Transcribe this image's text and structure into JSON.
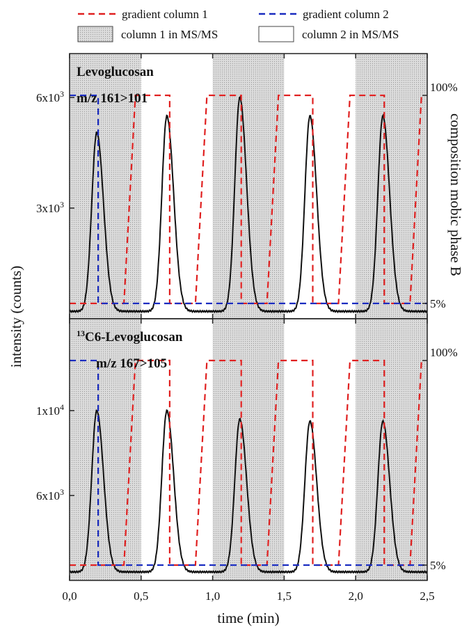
{
  "chart_data": {
    "type": "line",
    "xlabel": "time (min)",
    "ylabel": "intensity (counts)",
    "y2label": "composition mobile phase B",
    "y2label_display": "composition mobic phase B",
    "xlim": [
      0.0,
      2.5
    ],
    "x_ticks": [
      "0,0",
      "0,5",
      "1,0",
      "1,5",
      "2,0",
      "2,5"
    ],
    "x_tick_values": [
      0.0,
      0.5,
      1.0,
      1.5,
      2.0,
      2.5
    ],
    "grid": false,
    "legend": {
      "placement": "top",
      "entries": [
        {
          "label": "gradient column 1",
          "style": "dashed",
          "color": "#e02020"
        },
        {
          "label": "gradient column 2",
          "style": "dashed",
          "color": "#1a2cc0"
        },
        {
          "label": "column 1 in MS/MS",
          "style": "shaded",
          "color": "#c8c8c8"
        },
        {
          "label": "column 2 in MS/MS",
          "style": "open",
          "color": "#ffffff"
        }
      ]
    },
    "shaded_intervals": [
      [
        0.0,
        0.5
      ],
      [
        1.0,
        1.5
      ],
      [
        2.0,
        2.5
      ]
    ],
    "colors": {
      "trace": "#111111",
      "gradient1": "#e02020",
      "gradient2": "#1a2cc0",
      "shade": "#d4d4d4"
    },
    "panels": [
      {
        "id": "top",
        "annotation_line1": "Levoglucosan",
        "annotation_line2": "m/z 161>101",
        "ylim": [
          0,
          7000
        ],
        "y_ticks": [
          {
            "value": 3000,
            "mantissa": "3x10",
            "exp": "3"
          },
          {
            "value": 6000,
            "mantissa": "6x10",
            "exp": "3"
          }
        ],
        "y2_ticks": [
          "5%",
          "100%"
        ],
        "baseline": 200,
        "peaks": [
          {
            "center": 0.19,
            "height": 5050,
            "width": 0.035
          },
          {
            "center": 0.68,
            "height": 5500,
            "width": 0.035
          },
          {
            "center": 1.19,
            "height": 6000,
            "width": 0.035
          },
          {
            "center": 1.68,
            "height": 5500,
            "width": 0.035
          },
          {
            "center": 2.19,
            "height": 5500,
            "width": 0.035
          }
        ]
      },
      {
        "id": "bottom",
        "annotation_prefix": "13",
        "annotation_line1": "C6-Levoglucosan",
        "annotation_sub": "6",
        "annotation_line2": "m/z 167>105",
        "ylim": [
          2000,
          14000
        ],
        "y_ticks": [
          {
            "value": 6000,
            "mantissa": "6x10",
            "exp": "3"
          },
          {
            "value": 10000,
            "mantissa": "1x10",
            "exp": "4"
          }
        ],
        "y2_ticks": [
          "5%",
          "100%"
        ],
        "baseline": 2400,
        "peaks": [
          {
            "center": 0.19,
            "height": 10000,
            "width": 0.035
          },
          {
            "center": 0.68,
            "height": 10000,
            "width": 0.035
          },
          {
            "center": 1.19,
            "height": 9600,
            "width": 0.035
          },
          {
            "center": 1.68,
            "height": 9500,
            "width": 0.035
          },
          {
            "center": 2.19,
            "height": 9500,
            "width": 0.035
          }
        ]
      }
    ],
    "gradient_column1": {
      "unit": "% B",
      "x": [
        0.0,
        0.38,
        0.46,
        0.46,
        0.5,
        0.5,
        0.52,
        0.7,
        0.7,
        0.88,
        0.96,
        0.96,
        1.0,
        1.0,
        1.02,
        1.2,
        1.2,
        1.38,
        1.46,
        1.46,
        1.5,
        1.5,
        1.52,
        1.7,
        1.7,
        1.88,
        1.96,
        1.96,
        2.0,
        2.0,
        2.02,
        2.2,
        2.2,
        2.38,
        2.46
      ],
      "y": [
        5,
        5,
        100,
        100,
        100,
        100,
        100,
        100,
        5,
        5,
        100,
        100,
        100,
        100,
        100,
        100,
        5,
        5,
        100,
        100,
        100,
        100,
        100,
        100,
        5,
        5,
        100,
        100,
        100,
        100,
        100,
        100,
        5,
        5,
        100
      ]
    },
    "gradient_column2": {
      "unit": "% B",
      "x": [
        0.0,
        0.2,
        0.2,
        0.38,
        0.46,
        0.46,
        0.5,
        0.5,
        0.52,
        0.7,
        0.7,
        0.88,
        0.96,
        0.96,
        1.0,
        1.0,
        1.02,
        1.2,
        1.2,
        1.38,
        1.46,
        1.46,
        1.5,
        1.5,
        1.52,
        1.7,
        1.7,
        1.88,
        1.96,
        1.96,
        2.0,
        2.0,
        2.02,
        2.2,
        2.2,
        2.5
      ],
      "y": [
        100,
        100,
        5,
        5,
        5,
        5,
        5,
        5,
        5,
        5,
        5,
        5,
        5,
        5,
        5,
        5,
        5,
        5,
        5,
        5,
        5,
        5,
        5,
        5,
        5,
        5,
        5,
        5,
        5,
        5,
        5,
        5,
        5,
        5,
        5,
        5
      ]
    }
  }
}
